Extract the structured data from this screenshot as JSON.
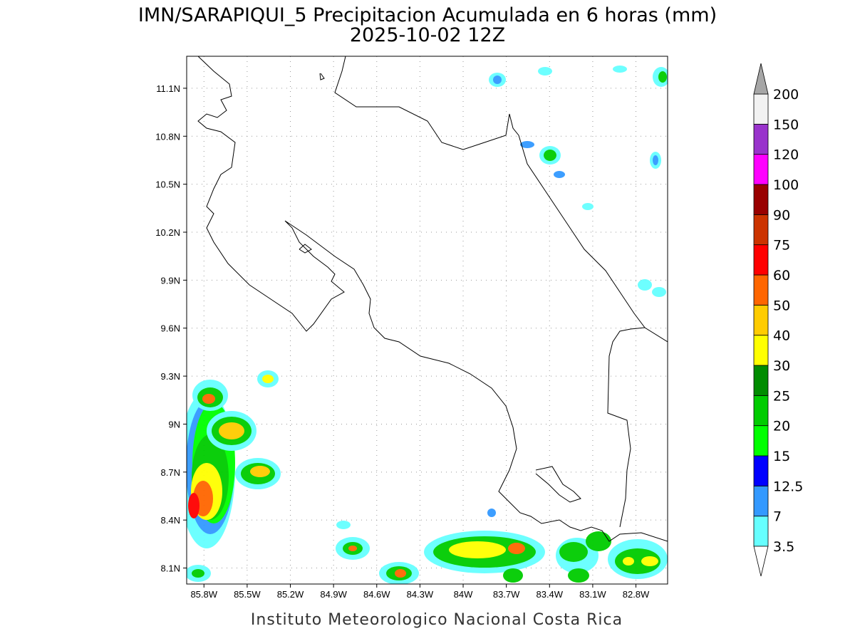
{
  "title": "IMN/SARAPIQUI_5 Precipitacion Acumulada en 6 horas (mm)",
  "subtitle": "2025-10-02 12Z",
  "footer": "Instituto Meteorologico Nacional Costa Rica",
  "map": {
    "xlim": [
      -85.92,
      -82.58
    ],
    "ylim": [
      8.0,
      11.3
    ],
    "xticks": [
      {
        "value": -85.8,
        "label": "85.8W"
      },
      {
        "value": -85.5,
        "label": "85.5W"
      },
      {
        "value": -85.2,
        "label": "85.2W"
      },
      {
        "value": -84.9,
        "label": "84.9W"
      },
      {
        "value": -84.6,
        "label": "84.6W"
      },
      {
        "value": -84.3,
        "label": "84.3W"
      },
      {
        "value": -84.0,
        "label": "84W"
      },
      {
        "value": -83.7,
        "label": "83.7W"
      },
      {
        "value": -83.4,
        "label": "83.4W"
      },
      {
        "value": -83.1,
        "label": "83.1W"
      },
      {
        "value": -82.8,
        "label": "82.8W"
      }
    ],
    "yticks": [
      {
        "value": 8.1,
        "label": "8.1N"
      },
      {
        "value": 8.4,
        "label": "8.4N"
      },
      {
        "value": 8.7,
        "label": "8.7N"
      },
      {
        "value": 9.0,
        "label": "9N"
      },
      {
        "value": 9.3,
        "label": "9.3N"
      },
      {
        "value": 9.6,
        "label": "9.6N"
      },
      {
        "value": 9.9,
        "label": "9.9N"
      },
      {
        "value": 10.2,
        "label": "10.2N"
      },
      {
        "value": 10.5,
        "label": "10.5N"
      },
      {
        "value": 10.8,
        "label": "10.8N"
      },
      {
        "value": 11.1,
        "label": "11.1N"
      }
    ],
    "grid": true
  },
  "colorbar": {
    "levels": [
      3.5,
      7,
      12.5,
      15,
      20,
      25,
      30,
      40,
      50,
      60,
      75,
      90,
      100,
      120,
      150,
      200
    ],
    "colors": [
      "#66ffff",
      "#3399ff",
      "#0000ff",
      "#00ff00",
      "#00cc00",
      "#008c00",
      "#ffff00",
      "#ffcc00",
      "#ff6600",
      "#ff0000",
      "#cc3300",
      "#990000",
      "#ff00ff",
      "#9933cc",
      "#f2f2f2"
    ],
    "under_color": "#ffffff",
    "over_color": "#a6a6a6"
  }
}
